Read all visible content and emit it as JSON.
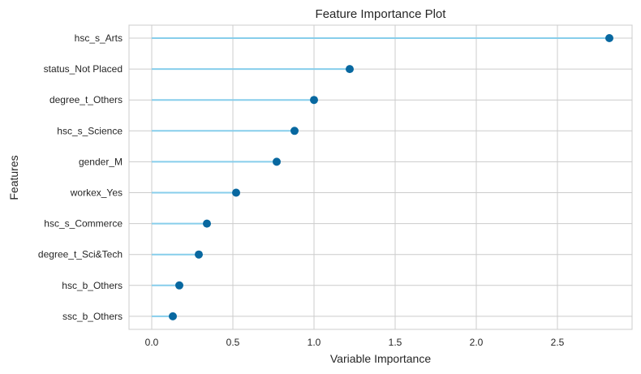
{
  "chart_data": {
    "type": "lollipop",
    "title": "Feature Importance Plot",
    "xlabel": "Variable Importance",
    "ylabel": "Features",
    "xlim": [
      -0.14,
      2.96
    ],
    "xticks": [
      "0.0",
      "0.5",
      "1.0",
      "1.5",
      "2.0",
      "2.5"
    ],
    "xtick_values": [
      0,
      0.5,
      1.0,
      1.5,
      2.0,
      2.5
    ],
    "grid": true,
    "categories": [
      "hsc_s_Arts",
      "status_Not Placed",
      "degree_t_Others",
      "hsc_s_Science",
      "gender_M",
      "workex_Yes",
      "hsc_s_Commerce",
      "degree_t_Sci&Tech",
      "hsc_b_Others",
      "ssc_b_Others"
    ],
    "values": [
      2.82,
      1.22,
      1.0,
      0.88,
      0.77,
      0.52,
      0.34,
      0.29,
      0.17,
      0.13
    ],
    "colors": {
      "stem": "#87ceeb",
      "marker": "#0868a0",
      "grid": "#cccccc",
      "frame": "#cccccc"
    }
  }
}
